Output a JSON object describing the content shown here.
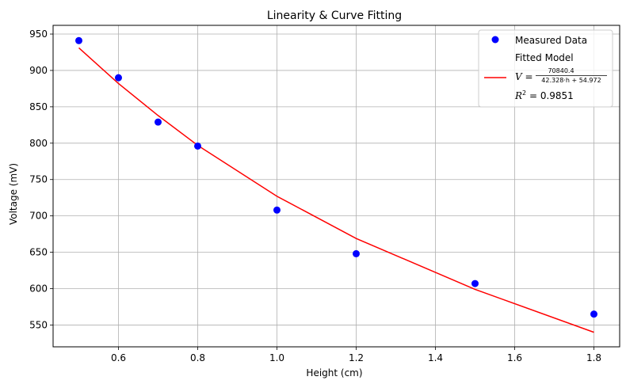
{
  "chart_data": {
    "type": "scatter",
    "title": "Linearity & Curve Fitting",
    "xlabel": "Height (cm)",
    "ylabel": "Voltage (mV)",
    "xlim": [
      0.435,
      1.865
    ],
    "ylim": [
      520,
      962
    ],
    "xticks": [
      0.6,
      0.8,
      1.0,
      1.2,
      1.4,
      1.6,
      1.8
    ],
    "xtick_labels": [
      "0.6",
      "0.8",
      "1.0",
      "1.2",
      "1.4",
      "1.6",
      "1.8"
    ],
    "yticks": [
      550,
      600,
      650,
      700,
      750,
      800,
      850,
      900,
      950
    ],
    "ytick_labels": [
      "550",
      "600",
      "650",
      "700",
      "750",
      "800",
      "850",
      "900",
      "950"
    ],
    "grid": true,
    "legend_position": "top-right",
    "series": [
      {
        "name": "Measured Data",
        "kind": "scatter",
        "color": "#0000ff",
        "x": [
          0.5,
          0.6,
          0.7,
          0.8,
          1.0,
          1.2,
          1.5,
          1.8
        ],
        "y": [
          941,
          890,
          829,
          796,
          708,
          648,
          607,
          565
        ]
      },
      {
        "name": "Fitted Model",
        "kind": "line",
        "color": "#ff0000",
        "x": [
          0.5,
          0.6,
          0.7,
          0.8,
          1.0,
          1.2,
          1.5,
          1.8
        ],
        "y": [
          931,
          882,
          838,
          797,
          727,
          669,
          599,
          540
        ]
      }
    ],
    "legend": {
      "scatter_label": "Measured Data",
      "model_label": "Fitted Model",
      "equation_lhs": "V =",
      "numerator": "70840.4",
      "denominator": "42.328·h + 54.972",
      "r2_lhs": "R",
      "r2_sup": "2",
      "r2_rhs": " = 0.9851"
    }
  }
}
